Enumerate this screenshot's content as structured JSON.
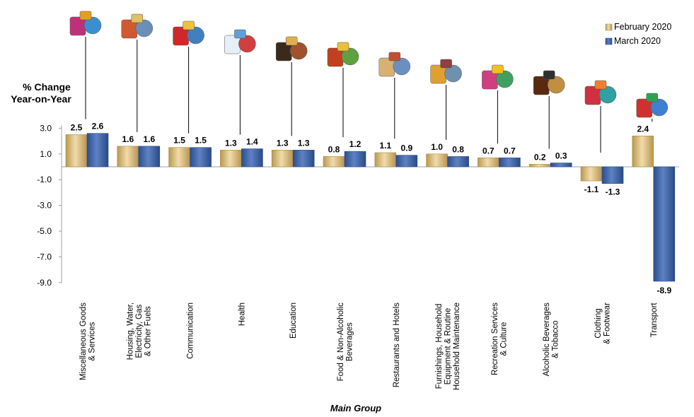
{
  "chart_data": {
    "type": "bar",
    "ylabel": [
      "% Change",
      "Year-on-Year"
    ],
    "xlabel": "Main Group",
    "ylim": [
      -9.0,
      3.0
    ],
    "yticks": [
      "3.0",
      "1.0",
      "-1.0",
      "-3.0",
      "-5.0",
      "-7.0",
      "-9.0"
    ],
    "categories": [
      [
        "Miscellaneous Goods",
        "& Services"
      ],
      [
        "Housing, Water,",
        "Electricity, Gas",
        "& Other Fuels"
      ],
      [
        "Communication"
      ],
      [
        "Health"
      ],
      [
        "Education"
      ],
      [
        "Food & Non-Alcoholic",
        "Beverages"
      ],
      [
        "Restaurants and Hotels"
      ],
      [
        "Furnishings, Household",
        "Equipment  & Routine",
        "Household Maintenance"
      ],
      [
        "Recreation Services",
        "& Culture"
      ],
      [
        "Alcoholic Beverages",
        "& Tobacco"
      ],
      [
        "Clothing",
        "& Footwear"
      ],
      [
        "Transport"
      ]
    ],
    "series": [
      {
        "name": "February 2020",
        "color": "#d9bf86",
        "values": [
          2.5,
          1.6,
          1.5,
          1.3,
          1.3,
          0.8,
          1.1,
          1.0,
          0.7,
          0.2,
          -1.1,
          2.4
        ],
        "labels": [
          "2.5",
          "1.6",
          "1.5",
          "1.3",
          "1.3",
          "0.8",
          "1.1",
          "1.0",
          "0.7",
          "0.2",
          "-1.1",
          "2.4"
        ]
      },
      {
        "name": "March 2020",
        "color": "#3e64a6",
        "values": [
          2.6,
          1.6,
          1.5,
          1.4,
          1.3,
          1.2,
          0.9,
          0.8,
          0.7,
          0.3,
          -1.3,
          -8.9
        ],
        "labels": [
          "2.6",
          "1.6",
          "1.5",
          "1.4",
          "1.3",
          "1.2",
          "0.9",
          "0.8",
          "0.7",
          "0.3",
          "-1.3",
          "-8.9"
        ]
      }
    ],
    "icons": [
      "cosmetics-shopping-icon",
      "house-power-icon",
      "phone-router-icon",
      "hospital-icon",
      "books-graduation-cap-icon",
      "food-basket-icon",
      "hotel-building-icon",
      "furniture-appliances-icon",
      "toys-recreation-icon",
      "bottles-tobacco-icon",
      "clothing-icon",
      "transport-vehicles-icon"
    ],
    "legend_position": "top-right",
    "grid": false
  }
}
